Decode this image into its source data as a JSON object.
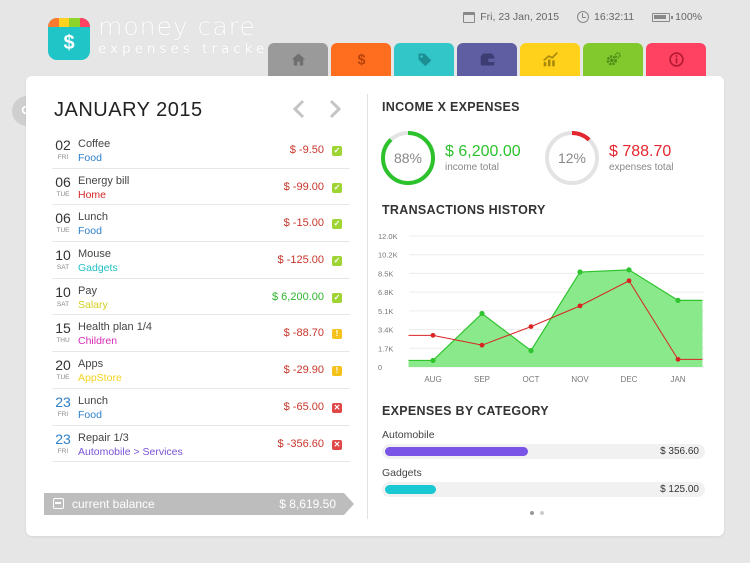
{
  "app": {
    "name": "money care",
    "subtitle": "expenses tracker",
    "logo_strip_colors": [
      "#ff7a2e",
      "#ffd21f",
      "#8fd42b",
      "#ff4262"
    ],
    "logo_color": "#1fc5c7"
  },
  "status": {
    "date": "Fri, 23 Jan, 2015",
    "time": "16:32:11",
    "battery": "100%"
  },
  "tabs": [
    {
      "name": "home",
      "icon": "home-icon",
      "color": "#9a9a9a"
    },
    {
      "name": "transactions",
      "icon": "dollar-icon",
      "color": "#ff6d1f"
    },
    {
      "name": "categories",
      "icon": "tag-icon",
      "color": "#33c6c9"
    },
    {
      "name": "accounts",
      "icon": "wallet-icon",
      "color": "#5f5ea3"
    },
    {
      "name": "reports",
      "icon": "chart-icon",
      "color": "#ffd11a"
    },
    {
      "name": "settings",
      "icon": "gear-icon",
      "color": "#82c92e"
    },
    {
      "name": "info",
      "icon": "info-icon",
      "color": "#ff4262"
    }
  ],
  "left": {
    "month": "JANUARY 2015",
    "transactions": [
      {
        "day": "02",
        "dow": "FRI",
        "name": "Coffee",
        "category": "Food",
        "cat_color": "#2f7fc9",
        "amount": "$ -9.50",
        "amt_color": "#c9362b",
        "status": "check"
      },
      {
        "day": "06",
        "dow": "TUE",
        "name": "Energy bill",
        "category": "Home",
        "cat_color": "#d42626",
        "amount": "$ -99.00",
        "amt_color": "#c9362b",
        "status": "check"
      },
      {
        "day": "06",
        "dow": "TUE",
        "name": "Lunch",
        "category": "Food",
        "cat_color": "#2f7fc9",
        "amount": "$ -15.00",
        "amt_color": "#c9362b",
        "status": "check"
      },
      {
        "day": "10",
        "dow": "SAT",
        "name": "Mouse",
        "category": "Gadgets",
        "cat_color": "#1fbfc4",
        "amount": "$ -125.00",
        "amt_color": "#c9362b",
        "status": "check"
      },
      {
        "day": "10",
        "dow": "SAT",
        "name": "Pay",
        "category": "Salary",
        "cat_color": "#d4cf1f",
        "amount": "$ 6,200.00",
        "amt_color": "#2db52d",
        "status": "check"
      },
      {
        "day": "15",
        "dow": "THU",
        "name": "Health plan 1/4",
        "category": "Children",
        "cat_color": "#d62cb6",
        "amount": "$ -88.70",
        "amt_color": "#c9362b",
        "status": "warn"
      },
      {
        "day": "20",
        "dow": "TUE",
        "name": "Apps",
        "category": "AppStore",
        "cat_color": "#f2d21f",
        "amount": "$ -29.90",
        "amt_color": "#c9362b",
        "status": "warn"
      },
      {
        "day": "23",
        "dow": "FRI",
        "name": "Lunch",
        "category": "Food",
        "cat_color": "#2f7fc9",
        "amount": "$ -65.00",
        "amt_color": "#c9362b",
        "status": "cross",
        "day_color": "#2f7fc9"
      },
      {
        "day": "23",
        "dow": "FRI",
        "name": "Repair 1/3",
        "category": "Automobile > Services",
        "cat_color": "#7a54d6",
        "amount": "$ -356.60",
        "amt_color": "#c9362b",
        "status": "cross",
        "day_color": "#2f7fc9"
      }
    ],
    "balance_label": "current balance",
    "balance_value": "$ 8,619.50"
  },
  "right": {
    "income_title": "INCOME X EXPENSES",
    "income": {
      "percent": "88%",
      "fraction": 0.88,
      "amount": "$ 6,200.00",
      "label": "income total",
      "color": "#2cc22c"
    },
    "expenses": {
      "percent": "12%",
      "fraction": 0.12,
      "amount": "$ 788.70",
      "label": "expenses total",
      "color": "#e3262f"
    },
    "history_title": "TRANSACTIONS HISTORY",
    "expenses_title": "EXPENSES BY CATEGORY",
    "categories": [
      {
        "name": "Automobile",
        "value": "$ 356.60",
        "fraction": 0.45,
        "color": "#7a54e6"
      },
      {
        "name": "Gadgets",
        "value": "$ 125.00",
        "fraction": 0.16,
        "color": "#19c8d2"
      }
    ]
  },
  "chart_data": {
    "type": "area",
    "categories": [
      "AUG",
      "SEP",
      "OCT",
      "NOV",
      "DEC",
      "JAN"
    ],
    "y_ticks": [
      "0",
      "1.7K",
      "3.4K",
      "5.1K",
      "6.8K",
      "8.5K",
      "10.2K",
      "12.0K"
    ],
    "ylim": [
      0,
      12000
    ],
    "x": [
      0,
      0.5,
      1,
      1.5,
      2,
      2.5,
      3,
      3.5,
      4,
      4.5,
      5,
      5.5
    ],
    "series": [
      {
        "values": [
          600,
          600,
          4900,
          1500,
          8700,
          8900,
          6100,
          6100
        ],
        "x": [
          -0.5,
          0,
          1,
          2,
          3,
          4,
          5,
          5.5
        ],
        "color": "#2ec42e",
        "fill": "#84e884"
      },
      {
        "values": [
          2900,
          2900,
          2000,
          3700,
          5600,
          7900,
          700,
          700
        ],
        "x": [
          -0.5,
          0,
          1,
          2,
          3,
          4,
          5,
          5.5
        ],
        "color": "#d92424"
      }
    ],
    "grid": true
  }
}
